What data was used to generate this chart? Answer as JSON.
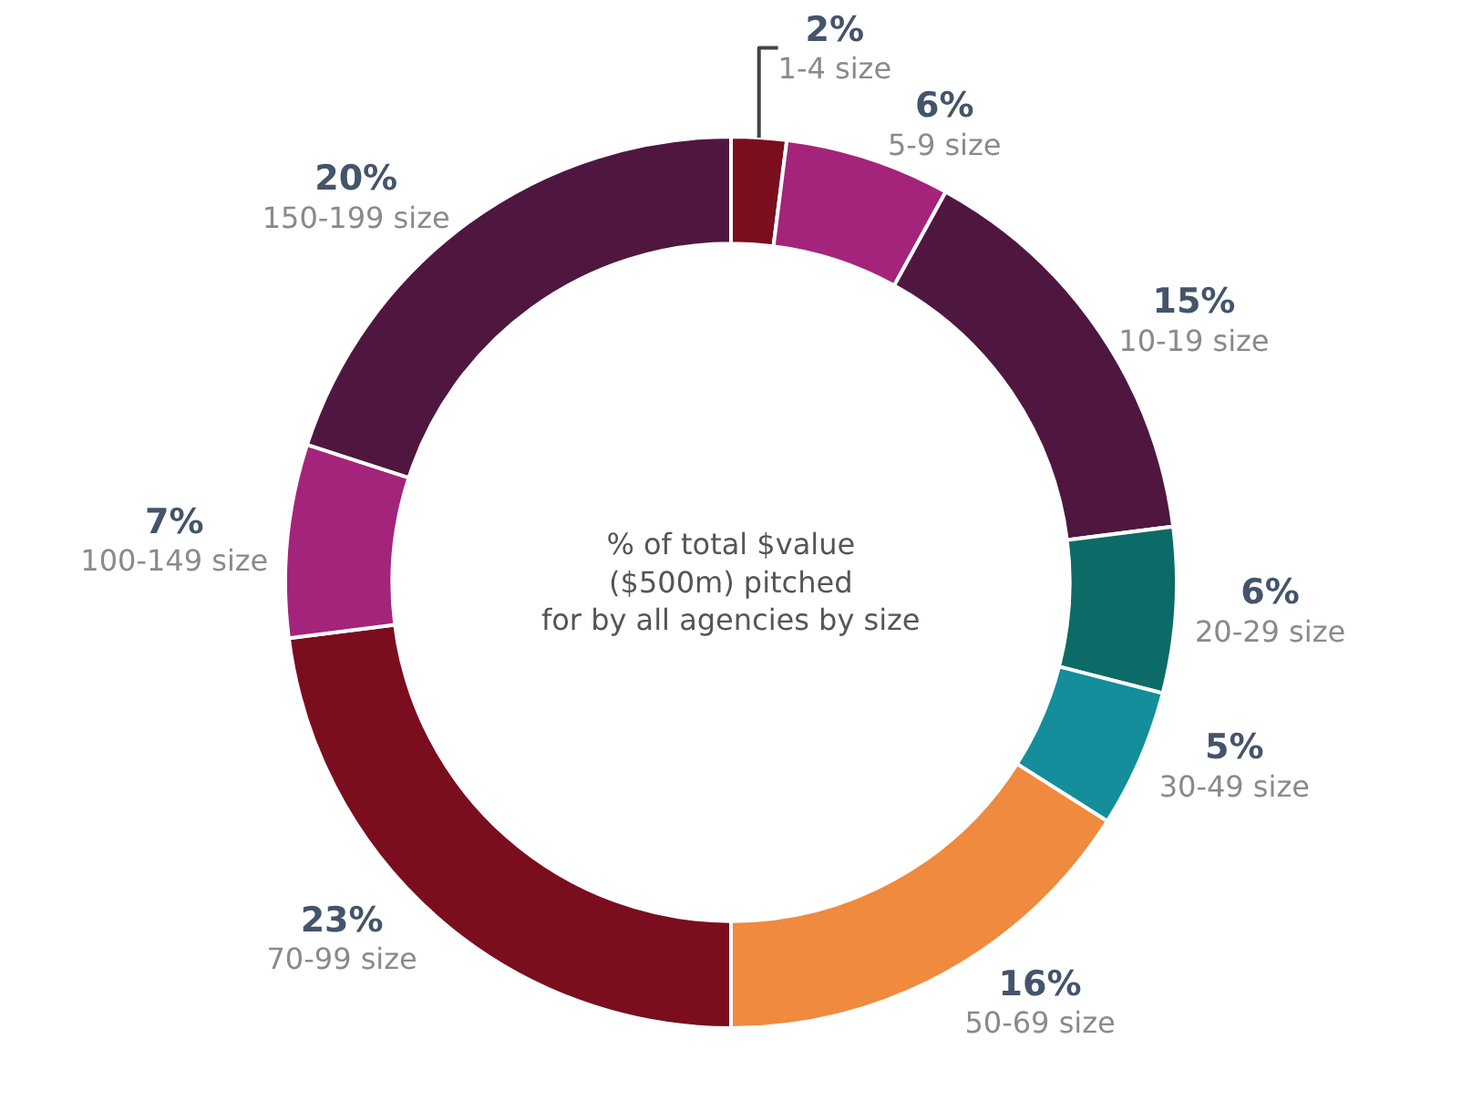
{
  "chart_data": {
    "type": "donut",
    "title": "% of total $value\n($500m) pitched\nfor by all agencies by size",
    "categories": [
      "1-4 size",
      "5-9 size",
      "10-19 size",
      "20-29 size",
      "30-49 size",
      "50-69 size",
      "70-99 size",
      "100-149 size",
      "150-199 size"
    ],
    "values": [
      2,
      6,
      15,
      6,
      5,
      16,
      23,
      7,
      20
    ],
    "value_labels": [
      "2%",
      "6%",
      "15%",
      "6%",
      "5%",
      "16%",
      "23%",
      "7%",
      "20%"
    ],
    "colors": [
      "#7a0e1f",
      "#a4247b",
      "#4f173f",
      "#0c6b66",
      "#138e9a",
      "#ef8a3e",
      "#7a0e1f",
      "#a4247b",
      "#4f173f"
    ],
    "legend": false
  }
}
